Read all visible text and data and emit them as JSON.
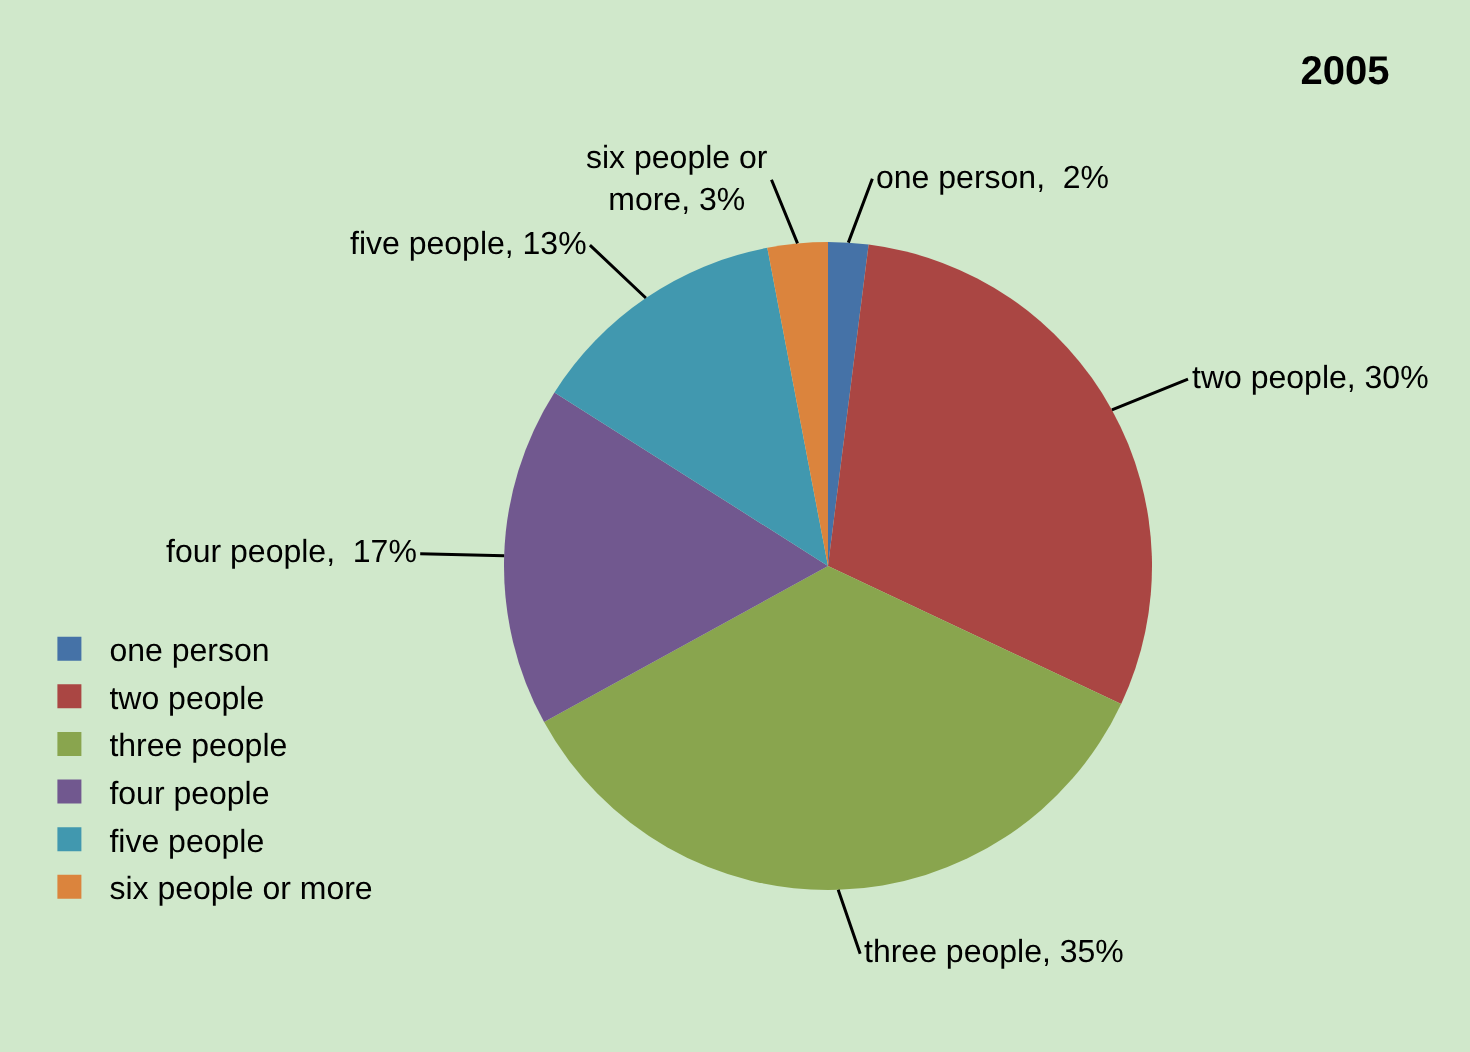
{
  "chart_data": {
    "type": "pie",
    "title": "2005",
    "categories": [
      "one person",
      "two people",
      "three people",
      "four people",
      "five people",
      "six people or more"
    ],
    "values": [
      2,
      30,
      35,
      17,
      13,
      3
    ],
    "colors": [
      "#4572a7",
      "#aa4643",
      "#89a54e",
      "#71588f",
      "#4198af",
      "#db843d"
    ],
    "value_labels": [
      "one person,  2%",
      "two people, 30%",
      "three people, 35%",
      "four people,  17%",
      "five people, 13%",
      "six people or more, 3%"
    ],
    "legend": "left"
  }
}
